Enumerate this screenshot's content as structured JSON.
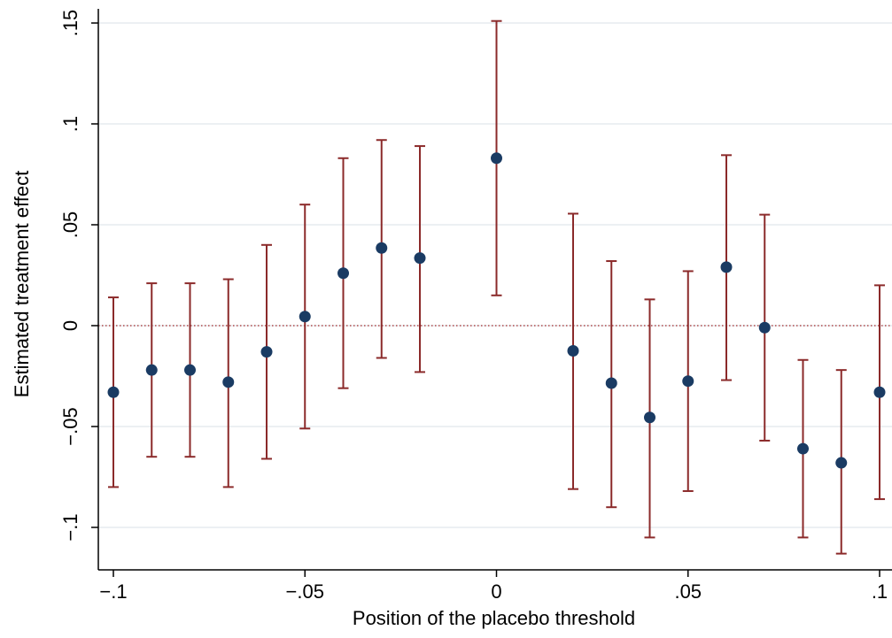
{
  "chart_data": {
    "type": "scatter",
    "title": "",
    "xlabel": "Position of the placebo threshold",
    "ylabel": "Estimated treatment effect",
    "xlim": [
      -0.1,
      0.1
    ],
    "ylim": [
      -0.12,
      0.16
    ],
    "x_ticks": [
      {
        "value": -0.1,
        "label": "-.1"
      },
      {
        "value": -0.05,
        "label": "-.05"
      },
      {
        "value": 0,
        "label": "0"
      },
      {
        "value": 0.05,
        "label": ".05"
      },
      {
        "value": 0.1,
        "label": ".1"
      }
    ],
    "y_ticks": [
      {
        "value": -0.1,
        "label": "-.1"
      },
      {
        "value": -0.05,
        "label": "-.05"
      },
      {
        "value": 0,
        "label": "0"
      },
      {
        "value": 0.05,
        "label": ".05"
      },
      {
        "value": 0.1,
        "label": ".1"
      },
      {
        "value": 0.15,
        "label": ".15"
      }
    ],
    "grid": true,
    "reference_line": {
      "y": 0,
      "style": "dotted"
    },
    "series": [
      {
        "points": [
          {
            "x": -0.1,
            "y": -0.033,
            "lo": -0.08,
            "hi": 0.014
          },
          {
            "x": -0.09,
            "y": -0.022,
            "lo": -0.065,
            "hi": 0.021
          },
          {
            "x": -0.08,
            "y": -0.022,
            "lo": -0.065,
            "hi": 0.021
          },
          {
            "x": -0.07,
            "y": -0.028,
            "lo": -0.08,
            "hi": 0.023
          },
          {
            "x": -0.06,
            "y": -0.013,
            "lo": -0.066,
            "hi": 0.04
          },
          {
            "x": -0.05,
            "y": 0.0045,
            "lo": -0.051,
            "hi": 0.06
          },
          {
            "x": -0.04,
            "y": 0.026,
            "lo": -0.031,
            "hi": 0.083
          },
          {
            "x": -0.03,
            "y": 0.0385,
            "lo": -0.016,
            "hi": 0.092
          },
          {
            "x": -0.02,
            "y": 0.0335,
            "lo": -0.023,
            "hi": 0.089
          },
          {
            "x": 0.0,
            "y": 0.083,
            "lo": 0.015,
            "hi": 0.151
          },
          {
            "x": 0.02,
            "y": -0.0125,
            "lo": -0.081,
            "hi": 0.0555
          },
          {
            "x": 0.03,
            "y": -0.0285,
            "lo": -0.09,
            "hi": 0.032
          },
          {
            "x": 0.04,
            "y": -0.0455,
            "lo": -0.105,
            "hi": 0.013
          },
          {
            "x": 0.05,
            "y": -0.0275,
            "lo": -0.082,
            "hi": 0.027
          },
          {
            "x": 0.06,
            "y": 0.029,
            "lo": -0.027,
            "hi": 0.0845
          },
          {
            "x": 0.07,
            "y": -0.001,
            "lo": -0.057,
            "hi": 0.055
          },
          {
            "x": 0.08,
            "y": -0.061,
            "lo": -0.105,
            "hi": -0.017
          },
          {
            "x": 0.09,
            "y": -0.068,
            "lo": -0.113,
            "hi": -0.022
          },
          {
            "x": 0.1,
            "y": -0.033,
            "lo": -0.086,
            "hi": 0.02
          }
        ]
      }
    ],
    "colors": {
      "point": "#1a3b63",
      "error_bar": "#8b2a2a",
      "reference_line": "#a52a2a",
      "grid": "#e6ecef",
      "axis": "#000000"
    }
  }
}
